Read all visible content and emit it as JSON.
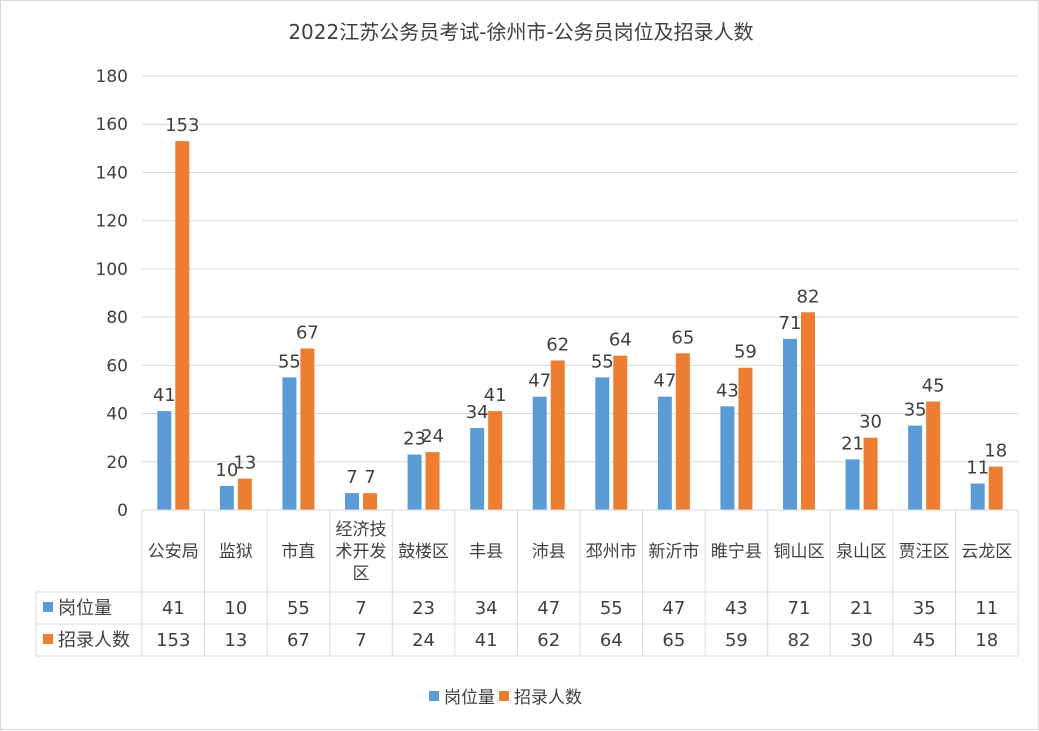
{
  "chart_data": {
    "type": "bar",
    "title": "2022江苏公务员考试-徐州市-公务员岗位及招录人数",
    "categories": [
      "公安局",
      "监狱",
      "市直",
      "经济技术开发区",
      "鼓楼区",
      "丰县",
      "沛县",
      "邳州市",
      "新沂市",
      "睢宁县",
      "铜山区",
      "泉山区",
      "贾汪区",
      "云龙区"
    ],
    "category_lines": [
      [
        "公安局"
      ],
      [
        "监狱"
      ],
      [
        "市直"
      ],
      [
        "经济技",
        "术开发",
        "区"
      ],
      [
        "鼓楼区"
      ],
      [
        "丰县"
      ],
      [
        "沛县"
      ],
      [
        "邳州市"
      ],
      [
        "新沂市"
      ],
      [
        "睢宁县"
      ],
      [
        "铜山区"
      ],
      [
        "泉山区"
      ],
      [
        "贾汪区"
      ],
      [
        "云龙区"
      ]
    ],
    "series": [
      {
        "name": "岗位量",
        "color": "#5b9bd5",
        "values": [
          41,
          10,
          55,
          7,
          23,
          34,
          47,
          55,
          47,
          43,
          71,
          21,
          35,
          11
        ]
      },
      {
        "name": "招录人数",
        "color": "#ed7d31",
        "values": [
          153,
          13,
          67,
          7,
          24,
          41,
          62,
          64,
          65,
          59,
          82,
          30,
          45,
          18
        ]
      }
    ],
    "ylim": [
      0,
      180
    ],
    "yticks": [
      0,
      20,
      40,
      60,
      80,
      100,
      120,
      140,
      160,
      180
    ],
    "xlabel": "",
    "ylabel": "",
    "grid": true,
    "legend": "bottom",
    "data_table": true
  }
}
